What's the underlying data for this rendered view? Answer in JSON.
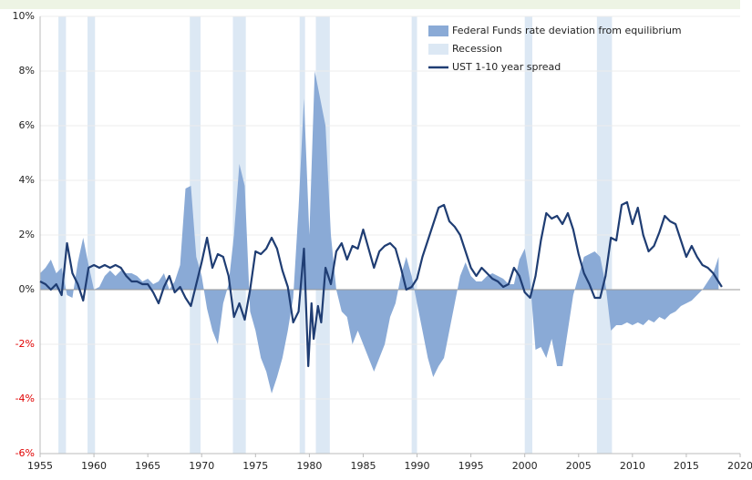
{
  "chart_data": {
    "type": "area-line",
    "xlim": [
      1955,
      2020
    ],
    "xticks": [
      1955,
      1960,
      1965,
      1970,
      1975,
      1980,
      1985,
      1990,
      1995,
      2000,
      2005,
      2010,
      2015,
      2020
    ],
    "ylim": [
      -6,
      10
    ],
    "yticks": [
      {
        "value": -6,
        "label": "-6%"
      },
      {
        "value": -4,
        "label": "-4%"
      },
      {
        "value": -2,
        "label": "-2%"
      },
      {
        "value": 0,
        "label": "0%"
      },
      {
        "value": 2,
        "label": "2%"
      },
      {
        "value": 4,
        "label": "4%"
      },
      {
        "value": 6,
        "label": "6%"
      },
      {
        "value": 8,
        "label": "8%"
      },
      {
        "value": 10,
        "label": "10%"
      }
    ],
    "negative_tick_color": "#e00000",
    "grid": true,
    "legend": "upper right",
    "series": [
      {
        "name": "Federal Funds rate deviation from equilibrium",
        "kind": "area",
        "color": "#8aaad6",
        "x": [
          1955,
          1955.5,
          1956,
          1956.5,
          1957,
          1957.5,
          1958,
          1958.5,
          1959,
          1959.5,
          1960,
          1960.5,
          1961,
          1961.5,
          1962,
          1962.5,
          1963,
          1963.5,
          1964,
          1964.5,
          1965,
          1965.5,
          1966,
          1966.5,
          1967,
          1967.5,
          1968,
          1968.5,
          1969,
          1969.5,
          1970,
          1970.5,
          1971,
          1971.5,
          1972,
          1972.5,
          1973,
          1973.5,
          1974,
          1974.5,
          1975,
          1975.5,
          1976,
          1976.5,
          1977,
          1977.5,
          1978,
          1978.5,
          1979,
          1979.5,
          1980,
          1980.5,
          1981,
          1981.5,
          1982,
          1982.5,
          1983,
          1983.5,
          1984,
          1984.5,
          1985,
          1985.5,
          1986,
          1986.5,
          1987,
          1987.5,
          1988,
          1988.5,
          1989,
          1989.5,
          1990,
          1990.5,
          1991,
          1991.5,
          1992,
          1992.5,
          1993,
          1993.5,
          1994,
          1994.5,
          1995,
          1995.5,
          1996,
          1996.5,
          1997,
          1997.5,
          1998,
          1998.5,
          1999,
          1999.5,
          2000,
          2000.5,
          2001,
          2001.5,
          2002,
          2002.5,
          2003,
          2003.5,
          2004,
          2004.5,
          2005,
          2005.5,
          2006,
          2006.5,
          2007,
          2007.5,
          2008,
          2008.5,
          2009,
          2009.5,
          2010,
          2010.5,
          2011,
          2011.5,
          2012,
          2012.5,
          2013,
          2013.5,
          2014,
          2014.5,
          2015,
          2015.5,
          2016,
          2016.5,
          2017,
          2017.5,
          2018
        ],
        "values": [
          0.6,
          0.8,
          1.1,
          0.6,
          0.8,
          -0.2,
          -0.3,
          1.0,
          1.9,
          0.9,
          0.0,
          0.1,
          0.5,
          0.7,
          0.5,
          0.7,
          0.6,
          0.6,
          0.5,
          0.3,
          0.4,
          0.2,
          0.3,
          0.6,
          0.0,
          0.3,
          0.9,
          3.7,
          3.8,
          1.2,
          0.5,
          -0.7,
          -1.5,
          -2.0,
          -0.5,
          0.2,
          2.0,
          4.6,
          3.8,
          -0.8,
          -1.5,
          -2.5,
          -3.0,
          -3.8,
          -3.2,
          -2.5,
          -1.5,
          -0.3,
          3.0,
          7.0,
          2.0,
          8.0,
          7.0,
          6.0,
          2.0,
          0.0,
          -0.8,
          -1.0,
          -2.0,
          -1.5,
          -2.0,
          -2.5,
          -3.0,
          -2.5,
          -2.0,
          -1.0,
          -0.5,
          0.5,
          1.2,
          0.5,
          -0.5,
          -1.5,
          -2.5,
          -3.2,
          -2.8,
          -2.5,
          -1.5,
          -0.5,
          0.5,
          1.0,
          0.5,
          0.3,
          0.3,
          0.5,
          0.6,
          0.5,
          0.4,
          0.2,
          0.2,
          1.1,
          1.5,
          0.3,
          -2.2,
          -2.1,
          -2.5,
          -1.8,
          -2.8,
          -2.8,
          -1.5,
          -0.2,
          0.5,
          1.2,
          1.3,
          1.4,
          1.2,
          0.2,
          -1.5,
          -1.3,
          -1.3,
          -1.2,
          -1.3,
          -1.2,
          -1.3,
          -1.1,
          -1.2,
          -1.0,
          -1.1,
          -0.9,
          -0.8,
          -0.6,
          -0.5,
          -0.4,
          -0.2,
          0.0,
          0.3,
          0.6,
          1.2
        ]
      },
      {
        "name": "Recession",
        "kind": "band",
        "color": "#dce8f4",
        "periods": [
          [
            1956.7,
            1957.4
          ],
          [
            1959.4,
            1960.1
          ],
          [
            1968.9,
            1969.9
          ],
          [
            1972.9,
            1974.1
          ],
          [
            1979.1,
            1979.6
          ],
          [
            1980.6,
            1981.9
          ],
          [
            1989.5,
            1990.0
          ],
          [
            2000.0,
            2000.7
          ],
          [
            2006.7,
            2008.1
          ]
        ]
      },
      {
        "name": "UST 1-10 year spread",
        "kind": "line",
        "color": "#1f3d73",
        "x": [
          1955,
          1955.5,
          1956,
          1956.5,
          1957,
          1957.5,
          1958,
          1958.5,
          1959,
          1959.5,
          1960,
          1960.5,
          1961,
          1961.5,
          1962,
          1962.5,
          1963,
          1963.5,
          1964,
          1964.5,
          1965,
          1965.5,
          1966,
          1966.5,
          1967,
          1967.5,
          1968,
          1968.5,
          1969,
          1969.5,
          1970,
          1970.5,
          1971,
          1971.5,
          1972,
          1972.5,
          1973,
          1973.5,
          1974,
          1974.5,
          1975,
          1975.5,
          1976,
          1976.5,
          1977,
          1977.5,
          1978,
          1978.5,
          1979,
          1979.5,
          1979.9,
          1980.2,
          1980.4,
          1980.8,
          1981.1,
          1981.5,
          1982,
          1982.5,
          1983,
          1983.5,
          1984,
          1984.5,
          1985,
          1985.5,
          1986,
          1986.5,
          1987,
          1987.5,
          1988,
          1988.5,
          1989,
          1989.5,
          1990,
          1990.5,
          1991,
          1991.5,
          1992,
          1992.5,
          1993,
          1993.5,
          1994,
          1994.5,
          1995,
          1995.5,
          1996,
          1996.5,
          1997,
          1997.5,
          1998,
          1998.5,
          1999,
          1999.5,
          2000,
          2000.5,
          2001,
          2001.5,
          2002,
          2002.5,
          2003,
          2003.5,
          2004,
          2004.5,
          2005,
          2005.5,
          2006,
          2006.5,
          2007,
          2007.5,
          2008,
          2008.5,
          2009,
          2009.5,
          2010,
          2010.5,
          2011,
          2011.5,
          2012,
          2012.5,
          2013,
          2013.5,
          2014,
          2014.5,
          2015,
          2015.5,
          2016,
          2016.5,
          2017,
          2017.5,
          2018.3
        ],
        "values": [
          0.3,
          0.2,
          0.0,
          0.2,
          -0.2,
          1.7,
          0.6,
          0.2,
          -0.4,
          0.8,
          0.9,
          0.8,
          0.9,
          0.8,
          0.9,
          0.8,
          0.5,
          0.3,
          0.3,
          0.2,
          0.2,
          -0.1,
          -0.5,
          0.1,
          0.5,
          -0.1,
          0.1,
          -0.3,
          -0.6,
          0.2,
          1.0,
          1.9,
          0.8,
          1.3,
          1.2,
          0.5,
          -1.0,
          -0.5,
          -1.1,
          0.0,
          1.4,
          1.3,
          1.5,
          1.9,
          1.5,
          0.7,
          0.1,
          -1.2,
          -0.8,
          1.5,
          -2.8,
          -0.5,
          -1.8,
          -0.6,
          -1.2,
          0.8,
          0.2,
          1.4,
          1.7,
          1.1,
          1.6,
          1.5,
          2.2,
          1.5,
          0.8,
          1.4,
          1.6,
          1.7,
          1.5,
          0.8,
          0.0,
          0.1,
          0.4,
          1.2,
          1.8,
          2.4,
          3.0,
          3.1,
          2.5,
          2.3,
          2.0,
          1.4,
          0.8,
          0.5,
          0.8,
          0.6,
          0.4,
          0.3,
          0.1,
          0.2,
          0.8,
          0.5,
          -0.1,
          -0.3,
          0.5,
          1.8,
          2.8,
          2.6,
          2.7,
          2.4,
          2.8,
          2.2,
          1.3,
          0.6,
          0.2,
          -0.3,
          -0.3,
          0.5,
          1.9,
          1.8,
          3.1,
          3.2,
          2.4,
          3.0,
          2.0,
          1.4,
          1.6,
          2.1,
          2.7,
          2.5,
          2.4,
          1.8,
          1.2,
          1.6,
          1.2,
          0.9,
          0.8,
          0.6,
          0.1
        ]
      }
    ]
  }
}
